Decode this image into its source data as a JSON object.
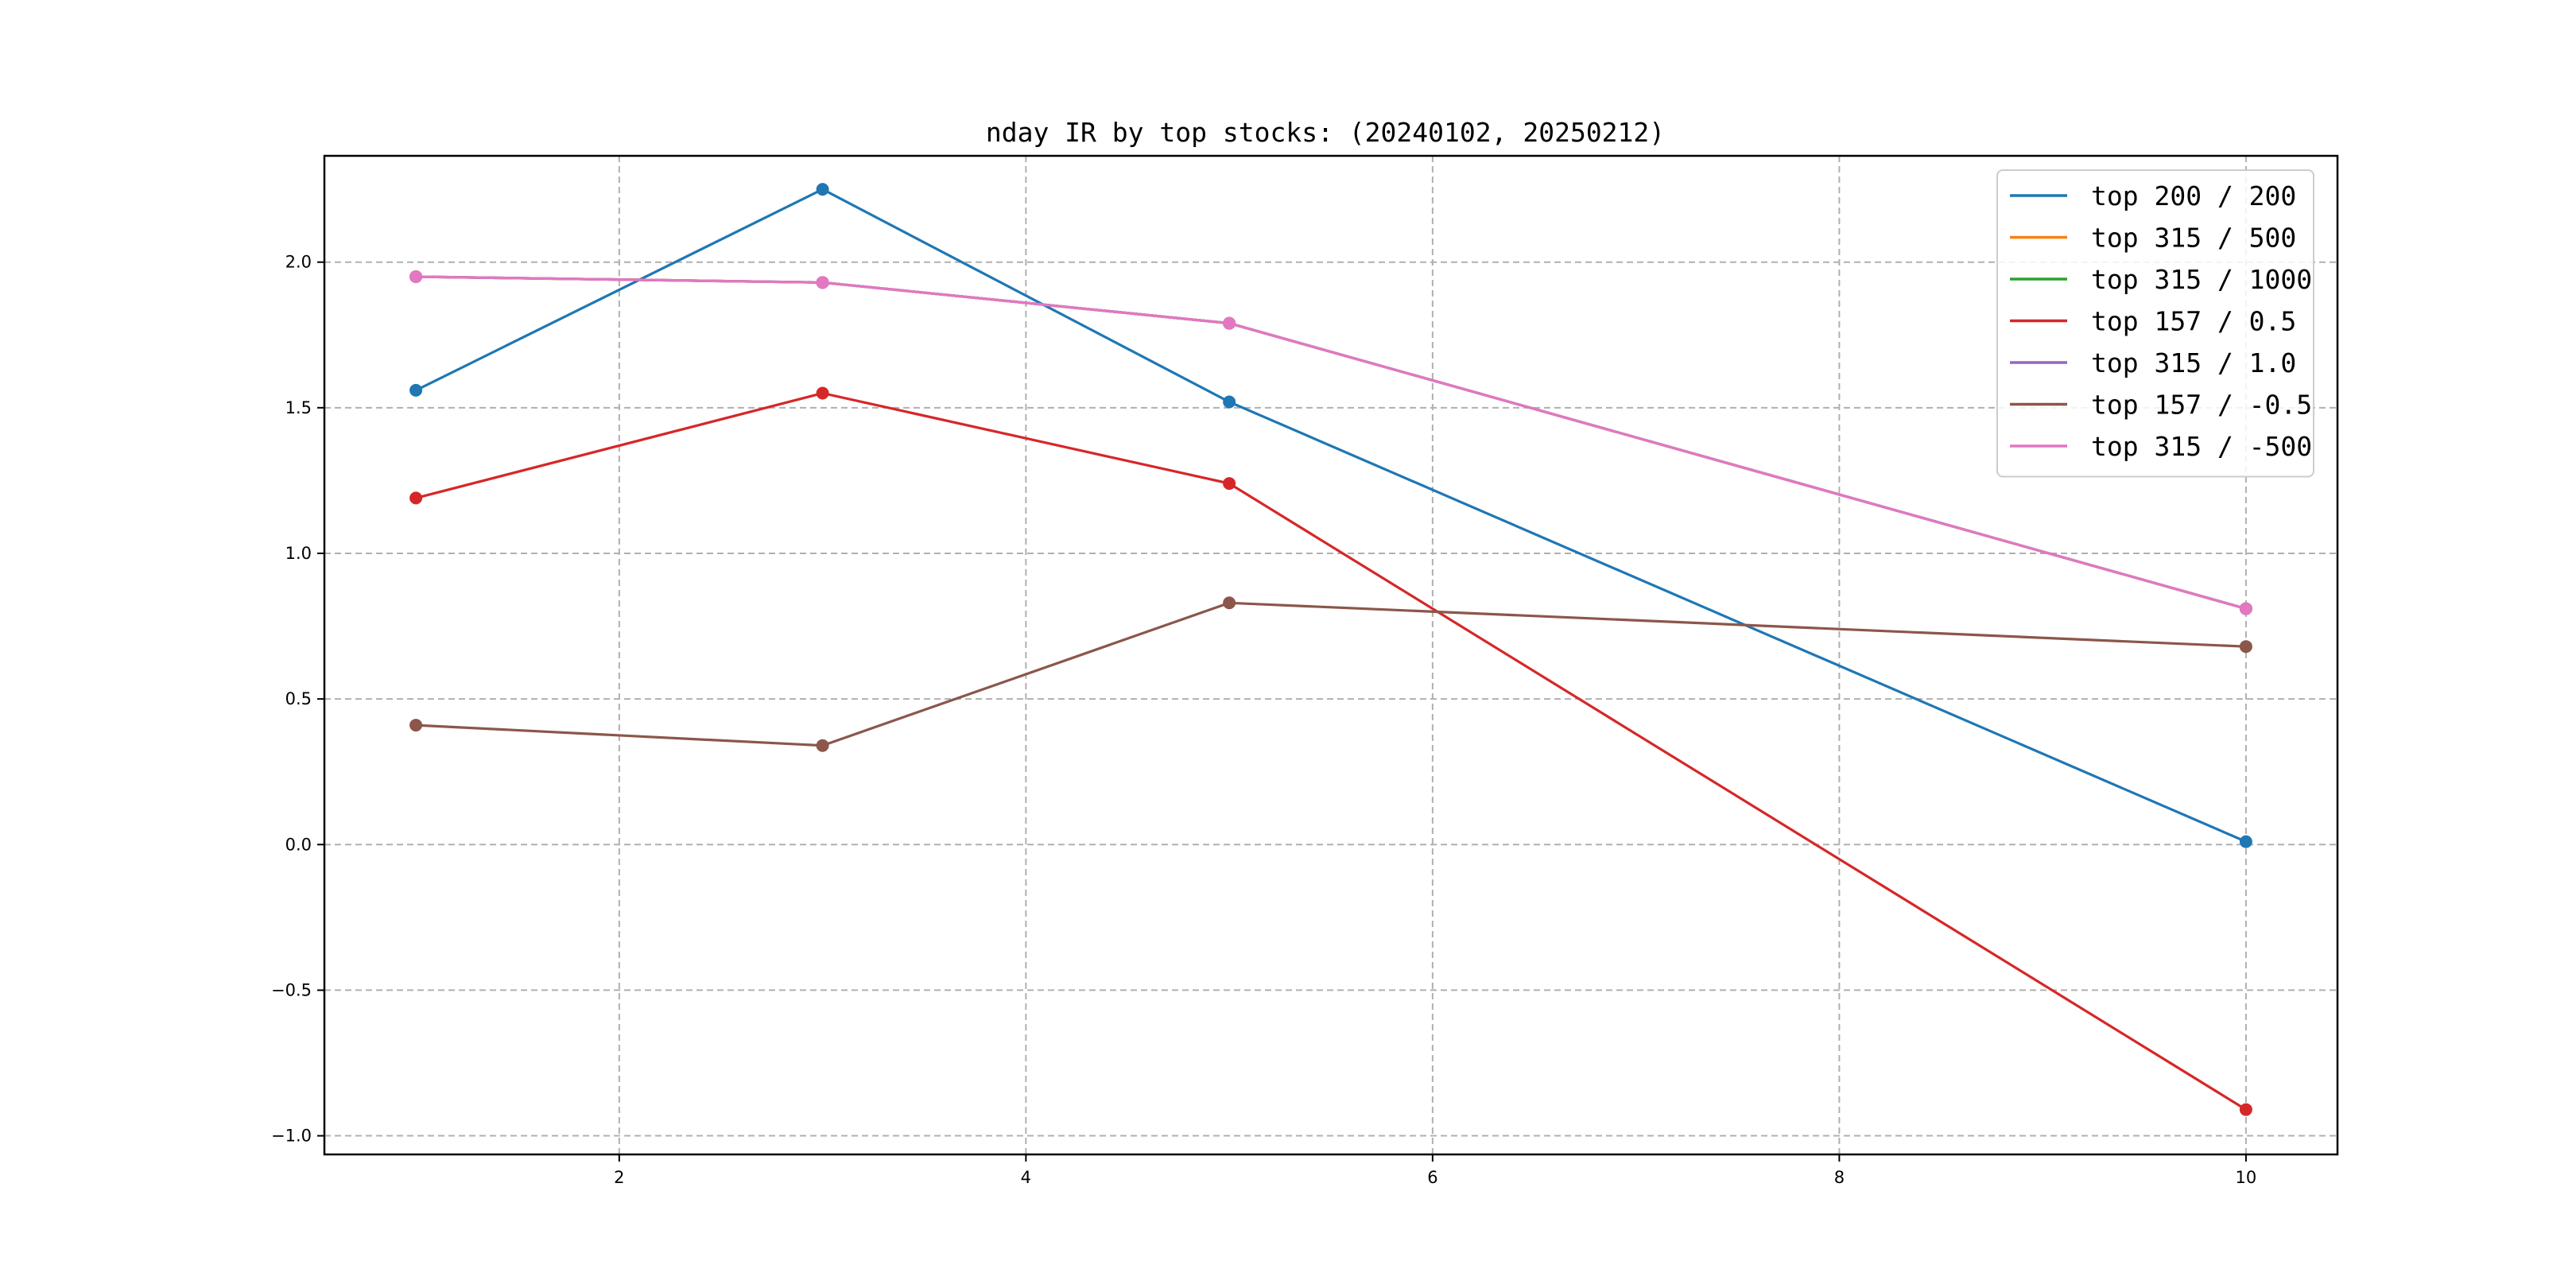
{
  "chart_data": {
    "type": "line",
    "title": "nday IR by top stocks: (20240102, 20250212)",
    "xlabel": "",
    "ylabel": "",
    "xlim": [
      0.55,
      10.45
    ],
    "ylim": [
      -1.064,
      2.365
    ],
    "xticks": [
      2,
      4,
      6,
      8,
      10
    ],
    "xtick_labels": [
      "2",
      "4",
      "6",
      "8",
      "10"
    ],
    "yticks": [
      -1.0,
      -0.5,
      0.0,
      0.5,
      1.0,
      1.5,
      2.0
    ],
    "ytick_labels": [
      "−1.0",
      "−0.5",
      "0.0",
      "0.5",
      "1.0",
      "1.5",
      "2.0"
    ],
    "grid": true,
    "legend_position": "top-right",
    "x": [
      1,
      3,
      5,
      10
    ],
    "series": [
      {
        "name": "top 200 / 200",
        "color": "#1f77b4",
        "values": [
          1.56,
          2.25,
          1.52,
          0.01
        ]
      },
      {
        "name": "top 315 / 500",
        "color": "#ff7f0e",
        "values": [
          1.95,
          1.93,
          1.79,
          0.81
        ]
      },
      {
        "name": "top 315 / 1000",
        "color": "#2ca02c",
        "values": [
          1.95,
          1.93,
          1.79,
          0.81
        ]
      },
      {
        "name": "top 157 / 0.5",
        "color": "#d62728",
        "values": [
          1.19,
          1.55,
          1.24,
          -0.91
        ]
      },
      {
        "name": "top 315 / 1.0",
        "color": "#9467bd",
        "values": [
          1.95,
          1.93,
          1.79,
          0.81
        ]
      },
      {
        "name": "top 157 / -0.5",
        "color": "#8c564b",
        "values": [
          0.41,
          0.34,
          0.83,
          0.68
        ]
      },
      {
        "name": "top 315 / -500",
        "color": "#e377c2",
        "values": [
          1.95,
          1.93,
          1.79,
          0.81
        ]
      }
    ]
  }
}
